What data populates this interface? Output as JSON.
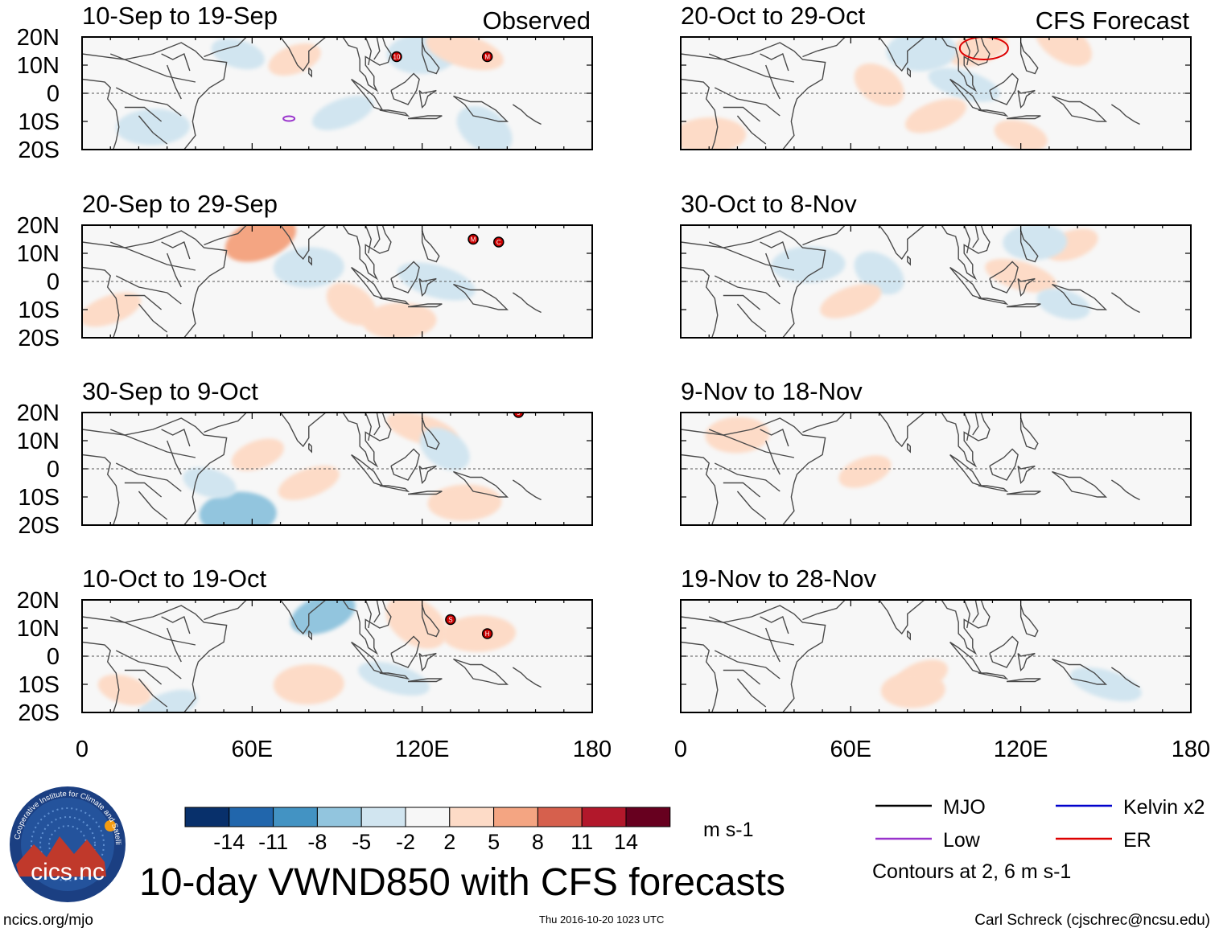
{
  "chart_data": {
    "type": "heatmap",
    "title": "10-day VWND850 with CFS forecasts",
    "variable": "VWND850",
    "units": "m s-1",
    "x_range": [
      0,
      180
    ],
    "y_range": [
      -20,
      20
    ],
    "x_ticks": [
      "0",
      "60E",
      "120E",
      "180"
    ],
    "y_ticks": [
      "20N",
      "10N",
      "0",
      "10S",
      "20S"
    ],
    "columns": [
      {
        "label": "Observed",
        "panels": [
          "10-Sep to 19-Sep",
          "20-Sep to 29-Sep",
          "30-Sep to 9-Oct",
          "10-Oct to 19-Oct"
        ]
      },
      {
        "label": "CFS Forecast",
        "panels": [
          "20-Oct to 29-Oct",
          "30-Oct to 8-Nov",
          "9-Nov to 18-Nov",
          "19-Nov to 28-Nov"
        ]
      }
    ],
    "colorbar": {
      "levels": [
        "-14",
        "-11",
        "-8",
        "-5",
        "-2",
        "2",
        "5",
        "8",
        "11",
        "14"
      ],
      "colors": [
        "#08306b",
        "#2166ac",
        "#4393c3",
        "#92c5de",
        "#d1e5f0",
        "#f7f7f7",
        "#fddbc7",
        "#f4a582",
        "#d6604d",
        "#b2182b",
        "#67001f"
      ]
    },
    "contour_legend": [
      {
        "label": "MJO",
        "color": "#000000"
      },
      {
        "label": "Kelvin x2",
        "color": "#0000cc"
      },
      {
        "label": "Low",
        "color": "#9933cc"
      },
      {
        "label": "ER",
        "color": "#dd0000"
      }
    ],
    "contour_note": "Contours at 2, 6 m s-1",
    "anomaly_patches": [
      [
        {
          "lon": 75,
          "lat": 12,
          "v": 3
        },
        {
          "lon": 120,
          "lat": 14,
          "v": -4
        },
        {
          "lon": 135,
          "lat": 15,
          "v": 4
        },
        {
          "lon": 142,
          "lat": -13,
          "v": -4
        },
        {
          "lon": 92,
          "lat": -7,
          "v": -3
        },
        {
          "lon": 25,
          "lat": -12,
          "v": -3
        },
        {
          "lon": 55,
          "lat": 14,
          "v": -3
        }
      ],
      [
        {
          "lon": 63,
          "lat": 15,
          "v": 6
        },
        {
          "lon": 80,
          "lat": 5,
          "v": -4
        },
        {
          "lon": 125,
          "lat": 0,
          "v": -4
        },
        {
          "lon": 95,
          "lat": -8,
          "v": 3
        },
        {
          "lon": 10,
          "lat": -10,
          "v": 3
        },
        {
          "lon": 112,
          "lat": -14,
          "v": 3
        }
      ],
      [
        {
          "lon": 62,
          "lat": 5,
          "v": 3
        },
        {
          "lon": 55,
          "lat": -16,
          "v": -5
        },
        {
          "lon": 120,
          "lat": 14,
          "v": 3
        },
        {
          "lon": 128,
          "lat": 7,
          "v": -3
        },
        {
          "lon": 80,
          "lat": -5,
          "v": 3
        },
        {
          "lon": 135,
          "lat": -12,
          "v": 3
        },
        {
          "lon": 45,
          "lat": -5,
          "v": -3
        }
      ],
      [
        {
          "lon": 85,
          "lat": 15,
          "v": -5
        },
        {
          "lon": 80,
          "lat": -10,
          "v": 4
        },
        {
          "lon": 110,
          "lat": -8,
          "v": -3
        },
        {
          "lon": 118,
          "lat": 12,
          "v": 5
        },
        {
          "lon": 30,
          "lat": -18,
          "v": -3
        },
        {
          "lon": 140,
          "lat": 8,
          "v": 3
        },
        {
          "lon": 15,
          "lat": -12,
          "v": 3
        }
      ],
      [
        {
          "lon": 105,
          "lat": 16,
          "v": 4
        },
        {
          "lon": 85,
          "lat": 15,
          "v": -4
        },
        {
          "lon": 100,
          "lat": 3,
          "v": -3
        },
        {
          "lon": 70,
          "lat": 3,
          "v": 3
        },
        {
          "lon": 90,
          "lat": -8,
          "v": 3
        },
        {
          "lon": 10,
          "lat": -15,
          "v": 3
        },
        {
          "lon": 120,
          "lat": -15,
          "v": 3
        },
        {
          "lon": 135,
          "lat": 18,
          "v": 3
        }
      ],
      [
        {
          "lon": 138,
          "lat": 13,
          "v": 3
        },
        {
          "lon": 125,
          "lat": 14,
          "v": -3
        },
        {
          "lon": 120,
          "lat": 2,
          "v": 3
        },
        {
          "lon": 70,
          "lat": 3,
          "v": -3
        },
        {
          "lon": 60,
          "lat": -7,
          "v": 3
        },
        {
          "lon": 45,
          "lat": 6,
          "v": -3
        },
        {
          "lon": 135,
          "lat": -8,
          "v": -3
        }
      ],
      [
        {
          "lon": 65,
          "lat": -1,
          "v": 3
        },
        {
          "lon": 20,
          "lat": 12,
          "v": 3
        }
      ],
      [
        {
          "lon": 85,
          "lat": -7,
          "v": 3
        },
        {
          "lon": 82,
          "lat": -12,
          "v": 3
        },
        {
          "lon": 150,
          "lat": -10,
          "v": -3
        }
      ]
    ],
    "contours": [
      {
        "panel": 0,
        "type": "Low",
        "lon": 73,
        "lat": -9
      },
      {
        "panel": 4,
        "type": "ER",
        "lon": 107,
        "lat": 16
      }
    ],
    "storm_markers": [
      {
        "panel": 0,
        "lon": 111,
        "lat": 13,
        "code": "10"
      },
      {
        "panel": 0,
        "lon": 143,
        "lat": 13,
        "code": "M"
      },
      {
        "panel": 1,
        "lon": 138,
        "lat": 15,
        "code": "M"
      },
      {
        "panel": 1,
        "lon": 147,
        "lat": 14,
        "code": "C"
      },
      {
        "panel": 2,
        "lon": 154,
        "lat": 20,
        "code": "9"
      },
      {
        "panel": 3,
        "lon": 130,
        "lat": 13,
        "code": "S"
      },
      {
        "panel": 3,
        "lon": 143,
        "lat": 8,
        "code": "H"
      }
    ]
  },
  "footer": {
    "logo_text": "cics.nc",
    "logo_ring": "Cooperative Institute for Climate and Satellites",
    "url": "ncics.org/mjo",
    "timestamp": "Thu 2016-10-20 1023 UTC",
    "credit": "Carl Schreck (cjschrec@ncsu.edu)"
  }
}
